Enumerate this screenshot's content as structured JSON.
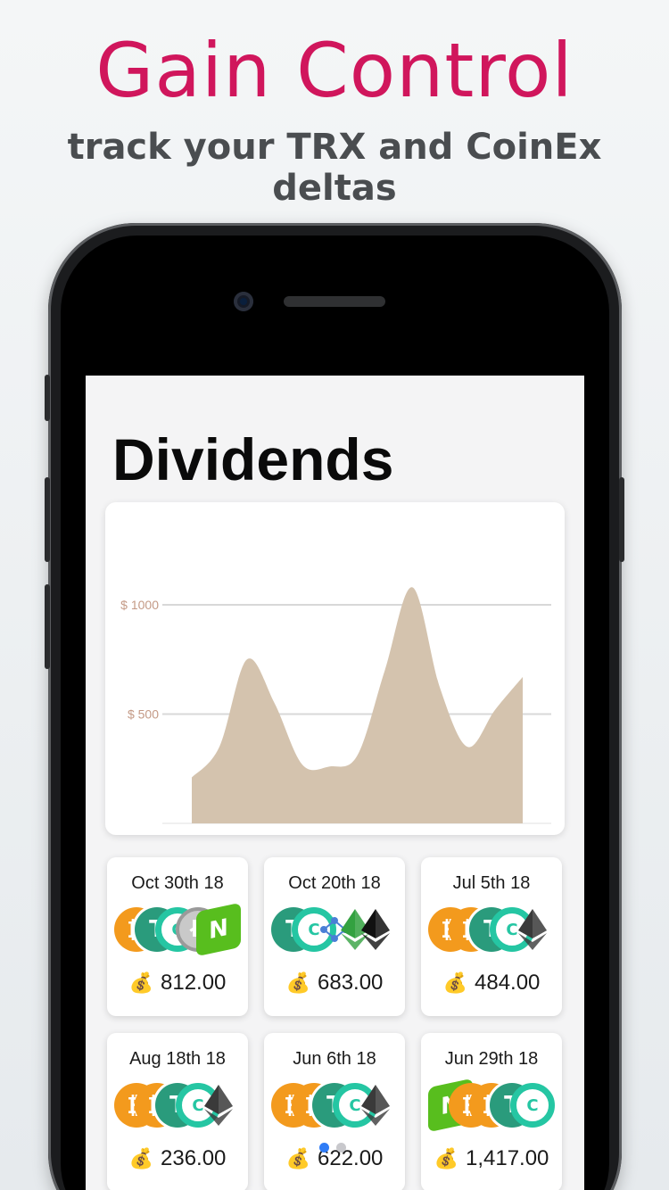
{
  "headline": "Gain Control",
  "subheadline": "track your TRX and CoinEx deltas",
  "screen": {
    "title": "Dividends"
  },
  "chart_data": {
    "type": "area",
    "x": [
      0,
      1,
      2,
      3,
      4,
      5,
      6,
      7,
      8,
      9,
      10,
      11,
      12
    ],
    "values": [
      210,
      350,
      750,
      550,
      270,
      260,
      310,
      700,
      1080,
      620,
      350,
      520,
      670
    ],
    "y_tick_labels": [
      "$ 500",
      "$ 1000"
    ],
    "y_ticks": [
      500,
      1000
    ],
    "ylim": [
      0,
      1000
    ],
    "grid": true,
    "fill_color": "#d4c3ae",
    "tick_label_color": "#c49a86"
  },
  "tiles": [
    {
      "date": "Oct 30th 18",
      "amount": "812.00",
      "coins": [
        "btc",
        "usdt",
        "cet",
        "ltc",
        "neo"
      ]
    },
    {
      "date": "Oct 20th 18",
      "amount": "683.00",
      "coins": [
        "usdt",
        "cet",
        "link",
        "etc",
        "eos"
      ]
    },
    {
      "date": "Jul 5th 18",
      "amount": "484.00",
      "coins": [
        "btc",
        "btc",
        "usdt",
        "cet",
        "eth"
      ]
    },
    {
      "date": "Aug 18th 18",
      "amount": "236.00",
      "coins": [
        "btc",
        "btc",
        "usdt",
        "cet",
        "eth"
      ]
    },
    {
      "date": "Jun 6th 18",
      "amount": "622.00",
      "coins": [
        "btc",
        "btc",
        "usdt",
        "cet",
        "eth"
      ]
    },
    {
      "date": "Jun 29th 18",
      "amount": "1,417.00",
      "coins": [
        "neo",
        "btc",
        "btc",
        "usdt",
        "cet"
      ]
    }
  ],
  "money_bag_icon": "money-bag-icon",
  "page_indicator": {
    "pages": 2,
    "active": 0
  }
}
